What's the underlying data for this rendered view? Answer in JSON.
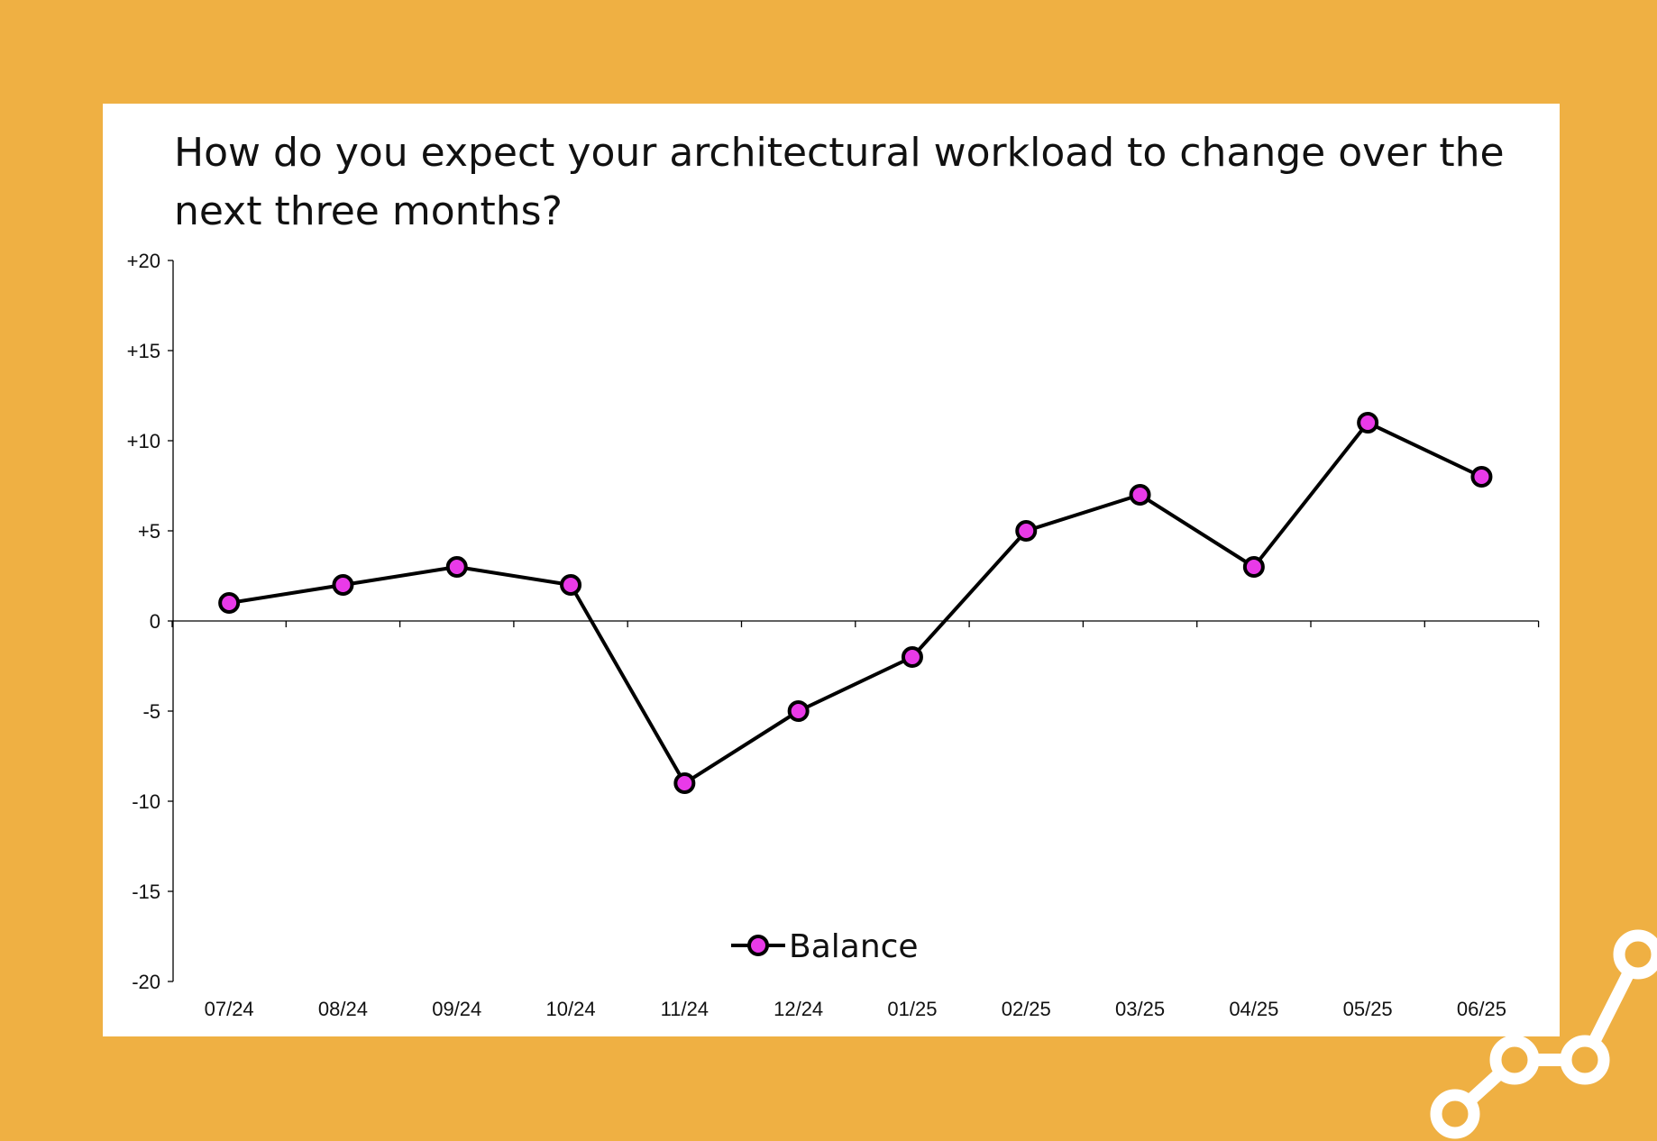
{
  "colors": {
    "background": "#efb043",
    "card": "#ffffff",
    "line": "#000000",
    "marker_fill": "#e93ae8",
    "axis": "#000000",
    "decoration": "#ffffff"
  },
  "decoration": {
    "icon": "line-chart-icon"
  },
  "chart_data": {
    "type": "line",
    "title": "How do you expect your architectural workload to change over the next three months?",
    "xlabel": "",
    "ylabel": "",
    "categories": [
      "07/24",
      "08/24",
      "09/24",
      "10/24",
      "11/24",
      "12/24",
      "01/25",
      "02/25",
      "03/25",
      "04/25",
      "05/25",
      "06/25"
    ],
    "series": [
      {
        "name": "Balance",
        "values": [
          1,
          2,
          3,
          2,
          -9,
          -5,
          -2,
          5,
          7,
          3,
          11,
          8
        ]
      }
    ],
    "ylim": [
      -20,
      20
    ],
    "yticks": [
      20,
      15,
      10,
      5,
      0,
      -5,
      -10,
      -15,
      -20
    ],
    "ytick_labels": [
      "+20",
      "+15",
      "+10",
      "+5",
      "0",
      "-5",
      "-10",
      "-15",
      "-20"
    ],
    "grid": false,
    "legend": "bottom-center"
  }
}
